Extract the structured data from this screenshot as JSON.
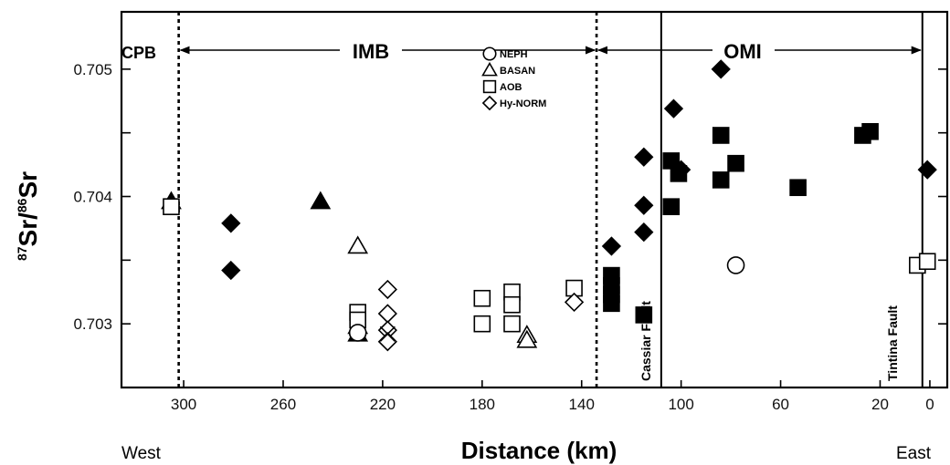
{
  "chart_data": {
    "type": "scatter",
    "xlabel": "Distance (km)",
    "ylabel_sup": "87",
    "ylabel_a": "Sr/",
    "ylabel_sup2": "86",
    "ylabel_b": "Sr",
    "x_reversed": true,
    "xlim": [
      325,
      -7
    ],
    "ylim": [
      0.7025,
      0.70545
    ],
    "x_ticks": [
      300,
      260,
      220,
      180,
      140,
      100,
      60,
      20,
      0
    ],
    "y_ticks": [
      0.703,
      0.704,
      0.705
    ],
    "x_tick_labels": [
      "300",
      "260",
      "220",
      "180",
      "140",
      "100",
      "60",
      "20",
      "0"
    ],
    "y_tick_labels": [
      "0.703",
      "0.704",
      "0.705"
    ],
    "side_labels": {
      "left": "West",
      "right": "East"
    },
    "regions": [
      {
        "label": "CPB"
      },
      {
        "label": "IMB"
      },
      {
        "label": "OMI"
      }
    ],
    "boundaries": [
      {
        "x": 302,
        "style": "dotted"
      },
      {
        "x": 134,
        "style": "dotted"
      },
      {
        "x": 108,
        "style": "solid",
        "label": "Cassiar Fault"
      },
      {
        "x": 3,
        "style": "solid",
        "label": "Tintina Fault"
      }
    ],
    "legend": [
      {
        "marker": "circle",
        "label": "NEPH"
      },
      {
        "marker": "triangle",
        "label": "BASAN"
      },
      {
        "marker": "square",
        "label": "AOB"
      },
      {
        "marker": "diamond",
        "label": "Hy-NORM"
      }
    ],
    "series": [
      {
        "marker": "triangle",
        "filled": true,
        "points": [
          [
            305,
            0.70396
          ],
          [
            245,
            0.70396
          ],
          [
            230,
            0.70298
          ],
          [
            230,
            0.70292
          ]
        ]
      },
      {
        "marker": "triangle",
        "filled": false,
        "points": [
          [
            230,
            0.70361
          ],
          [
            162,
            0.70291
          ],
          [
            162,
            0.70287
          ]
        ]
      },
      {
        "marker": "square",
        "filled": false,
        "points": [
          [
            305,
            0.70392
          ],
          [
            230,
            0.70309
          ],
          [
            230,
            0.70303
          ],
          [
            180,
            0.7032
          ],
          [
            180,
            0.703
          ],
          [
            168,
            0.70325
          ],
          [
            168,
            0.70315
          ],
          [
            168,
            0.703
          ],
          [
            143,
            0.70328
          ],
          [
            5,
            0.70346
          ],
          [
            1,
            0.70349
          ]
        ]
      },
      {
        "marker": "square",
        "filled": true,
        "points": [
          [
            128,
            0.70338
          ],
          [
            128,
            0.7033
          ],
          [
            128,
            0.70323
          ],
          [
            128,
            0.70316
          ],
          [
            115,
            0.70307
          ],
          [
            104,
            0.70428
          ],
          [
            104,
            0.70392
          ],
          [
            84,
            0.70448
          ],
          [
            84,
            0.70413
          ],
          [
            78,
            0.70426
          ],
          [
            53,
            0.70407
          ],
          [
            27,
            0.70448
          ],
          [
            24,
            0.70451
          ],
          [
            101,
            0.70418
          ]
        ]
      },
      {
        "marker": "diamond",
        "filled": true,
        "points": [
          [
            281,
            0.70379
          ],
          [
            281,
            0.70342
          ],
          [
            128,
            0.70361
          ],
          [
            115,
            0.70431
          ],
          [
            115,
            0.70393
          ],
          [
            115,
            0.70372
          ],
          [
            103,
            0.70469
          ],
          [
            100,
            0.70421
          ],
          [
            84,
            0.705
          ],
          [
            1,
            0.70421
          ]
        ]
      },
      {
        "marker": "diamond",
        "filled": false,
        "points": [
          [
            218,
            0.70327
          ],
          [
            218,
            0.70308
          ],
          [
            218,
            0.70295
          ],
          [
            218,
            0.70286
          ],
          [
            143,
            0.70317
          ]
        ]
      },
      {
        "marker": "circle",
        "filled": false,
        "points": [
          [
            230,
            0.70293
          ],
          [
            78,
            0.70346
          ]
        ]
      },
      {
        "marker": "cross",
        "filled": false,
        "points": [
          [
            218,
            0.70292
          ]
        ]
      }
    ]
  }
}
